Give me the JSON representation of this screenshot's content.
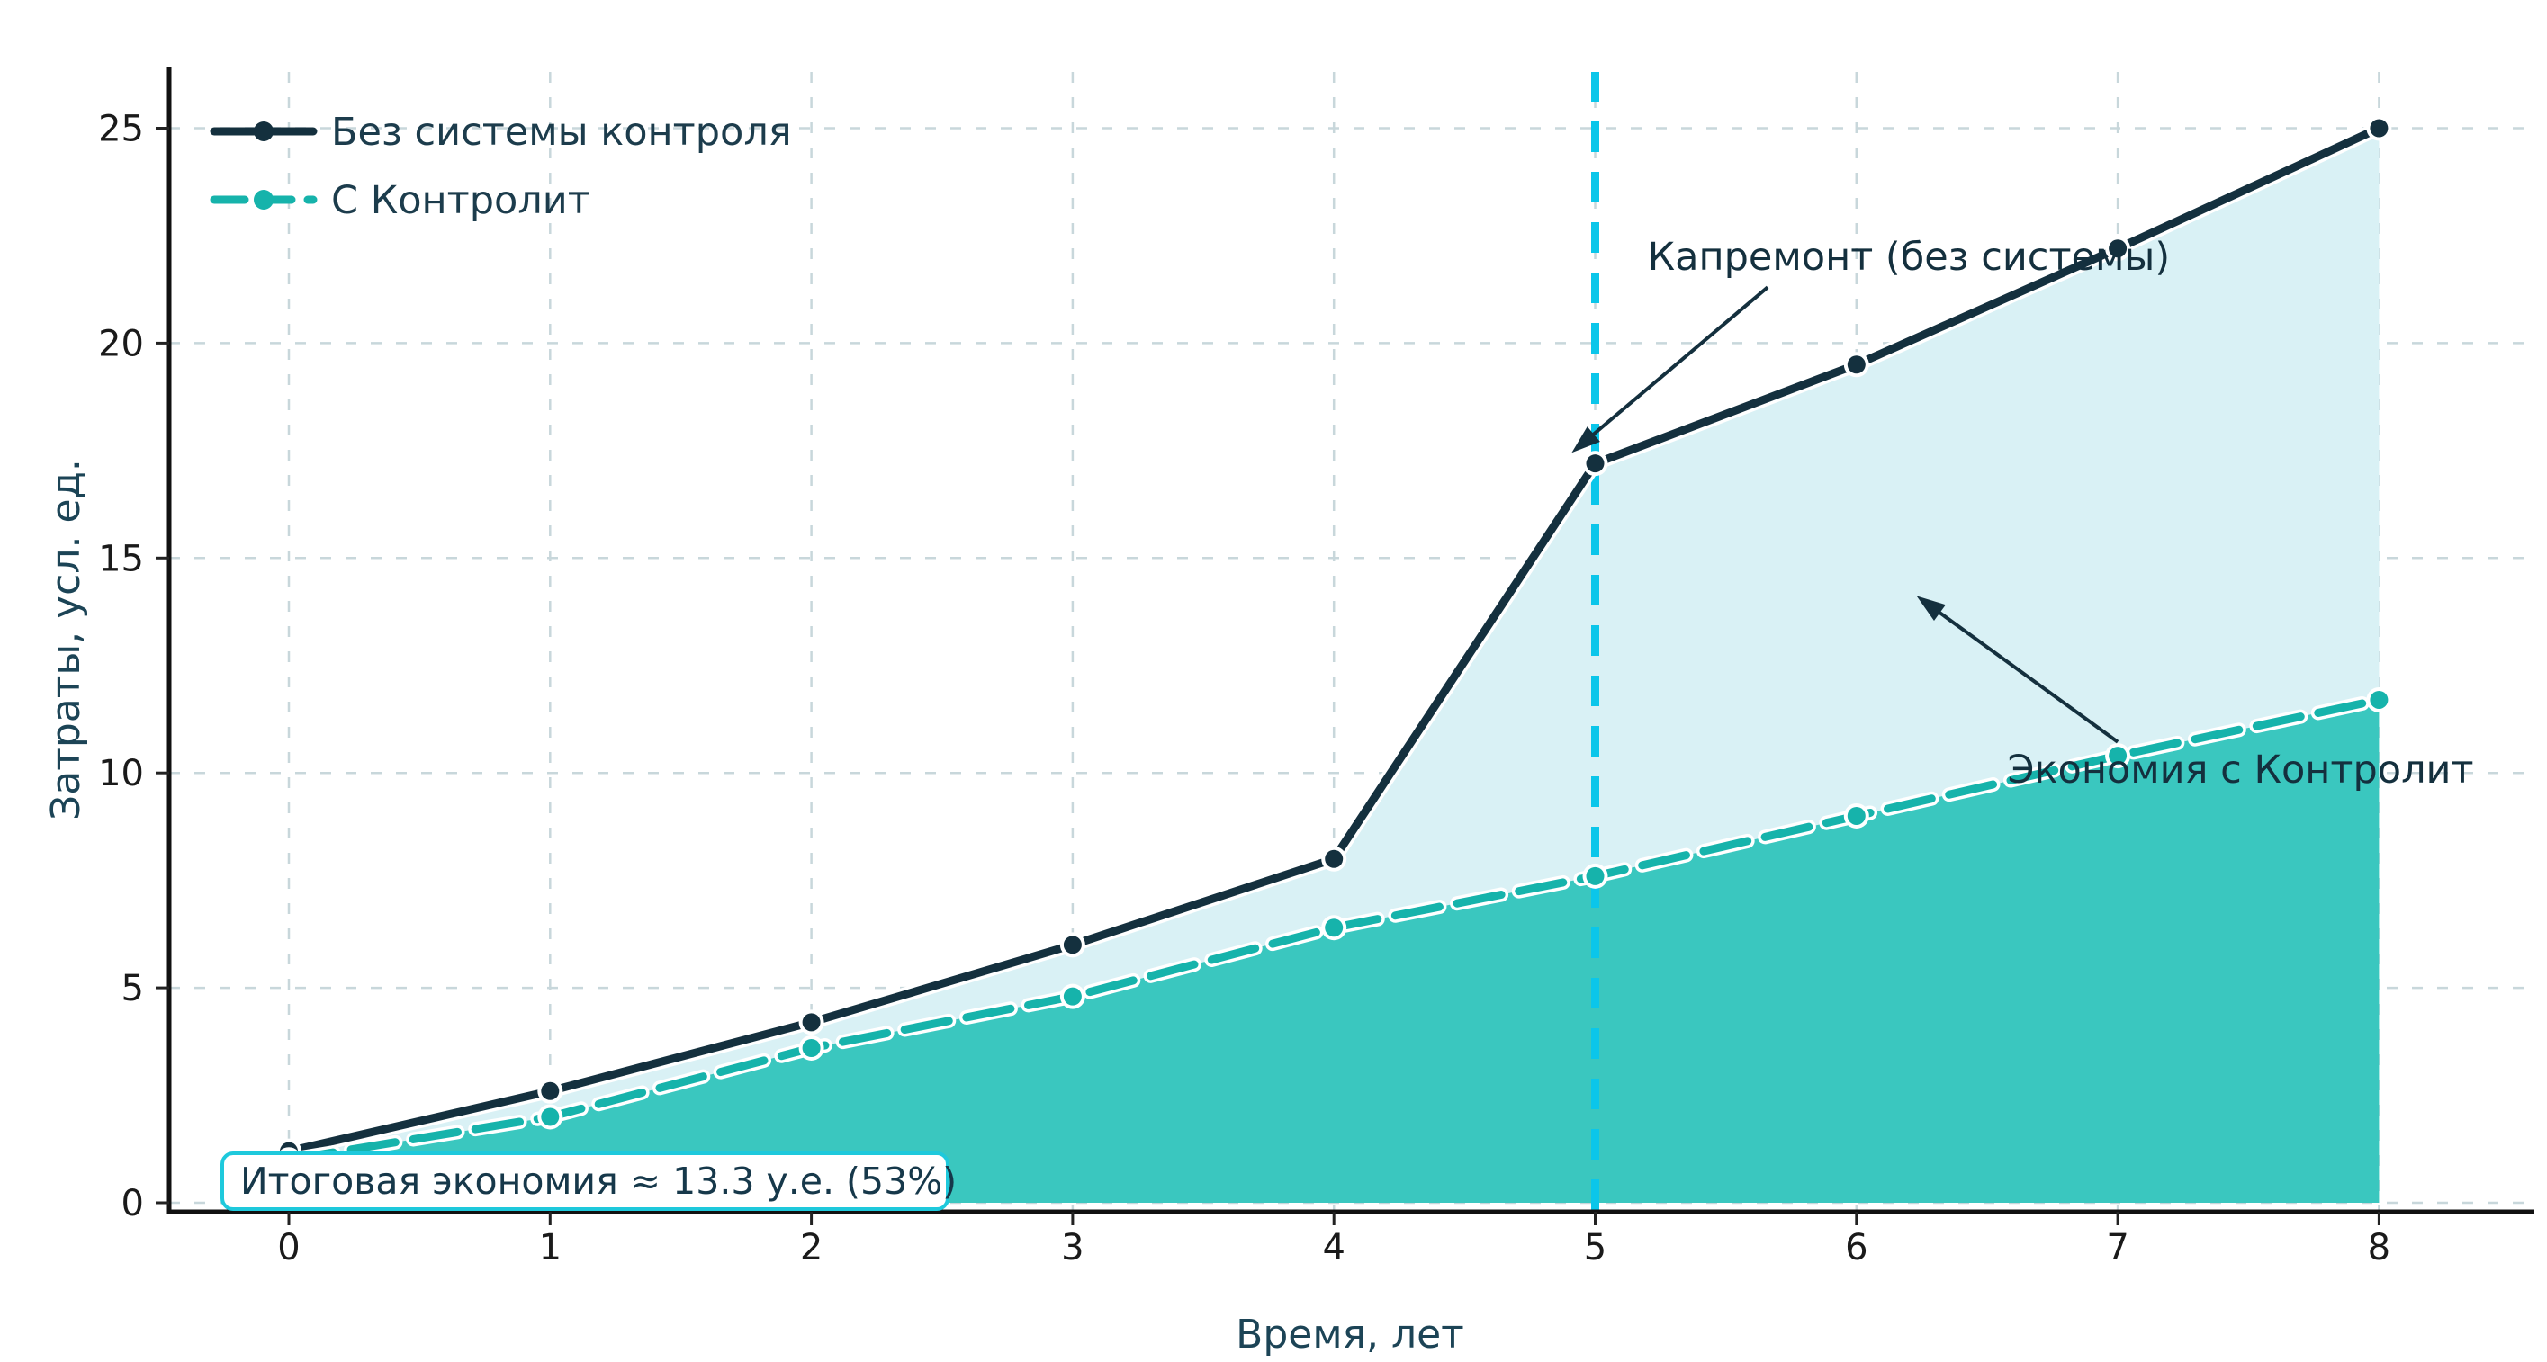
{
  "chart_data": {
    "type": "line",
    "title": "",
    "xlabel": "Время, лет",
    "ylabel": "Затраты, усл. ед.",
    "x": [
      0,
      1,
      2,
      3,
      4,
      5,
      6,
      7,
      8
    ],
    "xtick_labels": [
      "0",
      "1",
      "2",
      "3",
      "4",
      "5",
      "6",
      "7",
      "8"
    ],
    "yticks": [
      0,
      5,
      10,
      15,
      20,
      25
    ],
    "xlim": [
      -0.46,
      8.58
    ],
    "ylim": [
      0,
      26.5
    ],
    "grid": true,
    "legend_position": "upper-left",
    "series": [
      {
        "name": "Без системы контроля",
        "values": [
          1.2,
          2.6,
          4.2,
          6.0,
          8.0,
          17.2,
          19.5,
          22.2,
          25.0
        ],
        "color": "#14303e",
        "style": "solid",
        "marker": "circle"
      },
      {
        "name": "С Контролит",
        "values": [
          1.0,
          2.0,
          3.6,
          4.8,
          6.4,
          7.6,
          9.0,
          10.4,
          11.7
        ],
        "color": "#16b3ab",
        "style": "dashed",
        "marker": "circle"
      }
    ],
    "fill_between_color": "#d9f1f5",
    "fill_below_color": "#3ac7bf",
    "vline": {
      "x": 5,
      "color": "#0bc6ea",
      "style": "dashed"
    },
    "annotations": [
      {
        "text": "Капремонт (без системы)",
        "text_xy": [
          6.2,
          21.7
        ],
        "arrow_from": [
          5.66,
          21.3
        ],
        "arrow_to": [
          4.91,
          17.45
        ],
        "color": "#14303e"
      },
      {
        "text": "Экономия с Контролит",
        "text_xy": [
          7.47,
          9.77
        ],
        "arrow_from": [
          7.0,
          10.72
        ],
        "arrow_to": [
          6.23,
          14.12
        ],
        "color": "#14303e"
      }
    ],
    "note_box": {
      "text": "Итоговая экономия ≈ 13.3 у.е. (53%)",
      "border_color": "#1ec9dc",
      "background": "#ffffff"
    },
    "savings_total": "13.3",
    "savings_percent": "53%"
  }
}
